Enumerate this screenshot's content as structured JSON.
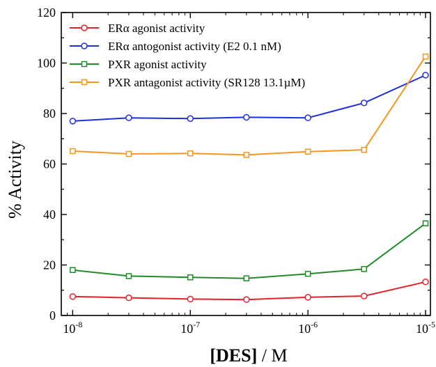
{
  "chart_data": {
    "type": "line",
    "x_scale": "log",
    "xlim": [
      8e-09,
      1.1e-05
    ],
    "ylim": [
      0,
      120
    ],
    "xlabel": {
      "bold": "[DES]",
      "rest": " / M"
    },
    "ylabel": "% Activity",
    "x_ticks": [
      {
        "value": 1e-08,
        "base": "10",
        "exp": "-8"
      },
      {
        "value": 1e-07,
        "base": "10",
        "exp": "-7"
      },
      {
        "value": 1e-06,
        "base": "10",
        "exp": "-6"
      },
      {
        "value": 1e-05,
        "base": "10",
        "exp": "-5"
      }
    ],
    "y_ticks": [
      {
        "value": 0,
        "label": "0"
      },
      {
        "value": 20,
        "label": "20"
      },
      {
        "value": 40,
        "label": "40"
      },
      {
        "value": 60,
        "label": "60"
      },
      {
        "value": 80,
        "label": "80"
      },
      {
        "value": 100,
        "label": "100"
      },
      {
        "value": 120,
        "label": "120"
      }
    ],
    "legend_position": "top-left",
    "grid": false,
    "x": [
      1e-08,
      3e-08,
      1e-07,
      3e-07,
      1e-06,
      3e-06,
      1e-05
    ],
    "series": [
      {
        "name": "ERα agonist activity",
        "color": "#e8202a",
        "marker": "circle",
        "values": [
          7.5,
          7.0,
          6.5,
          6.3,
          7.2,
          7.7,
          13.3
        ]
      },
      {
        "name": "ERα antogonist activity (E2 0.1 nM)",
        "color": "#1f2fe0",
        "marker": "circle",
        "values": [
          77.0,
          78.3,
          78.0,
          78.5,
          78.3,
          84.2,
          95.2
        ]
      },
      {
        "name": "PXR agonist activity",
        "color": "#1e8c26",
        "marker": "square",
        "values": [
          18.0,
          15.6,
          15.1,
          14.7,
          16.5,
          18.4,
          36.5
        ]
      },
      {
        "name": "PXR antagonist activity (SR128 13.1µM)",
        "color": "#f5961e",
        "marker": "square",
        "values": [
          65.1,
          64.0,
          64.2,
          63.6,
          64.9,
          65.6,
          102.6
        ]
      }
    ]
  }
}
